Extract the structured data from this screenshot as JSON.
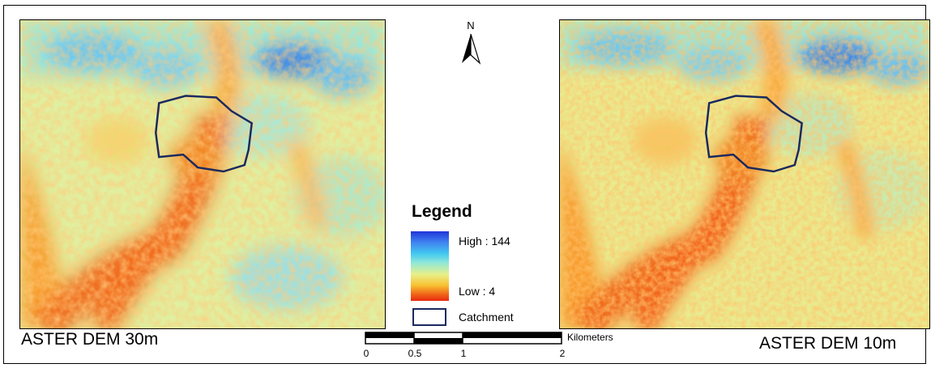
{
  "maps": [
    {
      "caption": "ASTER DEM 30m"
    },
    {
      "caption": "ASTER DEM 10m"
    }
  ],
  "north_arrow": {
    "label": "N"
  },
  "legend": {
    "title": "Legend",
    "high_label": "High : 144",
    "low_label": "Low : 4",
    "catchment_label": "Catchment",
    "high_value": 144,
    "low_value": 4,
    "ramp_colors": [
      "#2033d8",
      "#42c8f0",
      "#e8f08a",
      "#f8c030",
      "#e82a10"
    ],
    "catchment_color": "#1a2a5e"
  },
  "scalebar": {
    "unit": "Kilometers",
    "ticks": [
      "0",
      "0.5",
      "1",
      "2"
    ]
  }
}
